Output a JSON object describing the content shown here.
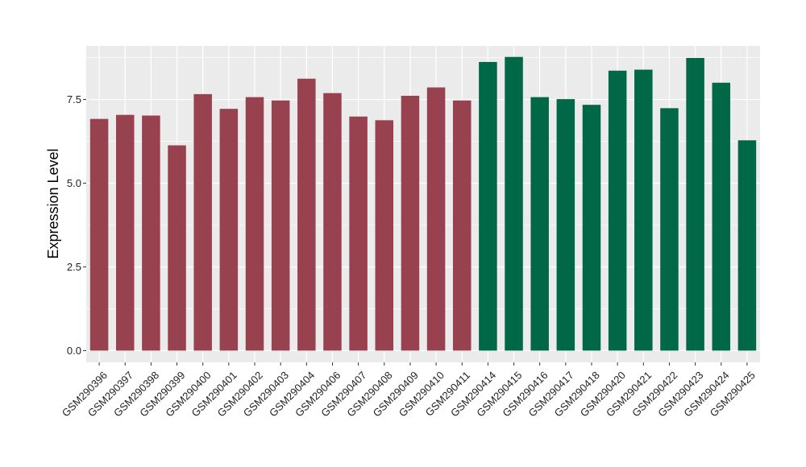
{
  "chart_data": {
    "type": "bar",
    "title": "",
    "xlabel": "",
    "ylabel": "Expression Level",
    "ylim": [
      -0.35,
      9.1
    ],
    "yticks": [
      0.0,
      2.5,
      5.0,
      7.5
    ],
    "ytick_labels": [
      "0.0",
      "2.5",
      "5.0",
      "7.5"
    ],
    "grid": true,
    "legend": "none",
    "categories": [
      "GSM290396",
      "GSM290397",
      "GSM290398",
      "GSM290399",
      "GSM290400",
      "GSM290401",
      "GSM290402",
      "GSM290403",
      "GSM290404",
      "GSM290406",
      "GSM290407",
      "GSM290408",
      "GSM290409",
      "GSM290410",
      "GSM290411",
      "GSM290414",
      "GSM290415",
      "GSM290416",
      "GSM290417",
      "GSM290418",
      "GSM290420",
      "GSM290421",
      "GSM290422",
      "GSM290423",
      "GSM290424",
      "GSM290425"
    ],
    "values": [
      6.92,
      7.04,
      7.02,
      6.13,
      7.66,
      7.22,
      7.57,
      7.47,
      8.12,
      7.69,
      6.99,
      6.88,
      7.61,
      7.86,
      7.47,
      8.62,
      8.77,
      7.57,
      7.51,
      7.34,
      8.36,
      8.39,
      7.24,
      8.74,
      8.0,
      6.28
    ],
    "groups": [
      "a",
      "a",
      "a",
      "a",
      "a",
      "a",
      "a",
      "a",
      "a",
      "a",
      "a",
      "a",
      "a",
      "a",
      "a",
      "b",
      "b",
      "b",
      "b",
      "b",
      "b",
      "b",
      "b",
      "b",
      "b",
      "b"
    ],
    "group_colors": {
      "a": "#99424f",
      "b": "#006846"
    },
    "panel_background": "#ebebeb",
    "gridline_color": "#ffffff"
  }
}
